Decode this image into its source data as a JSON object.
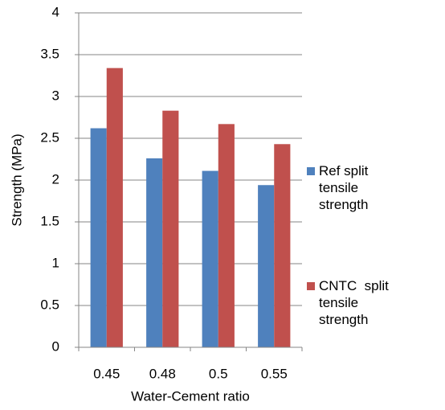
{
  "chart_data": {
    "type": "bar",
    "x_label": "Water-Cement ratio",
    "y_label": "Strength (MPa)",
    "categories": [
      "0.45",
      "0.48",
      "0.5",
      "0.55"
    ],
    "series": [
      {
        "name": "Ref split tensile strength",
        "color": "#4f81bd",
        "values": [
          2.62,
          2.26,
          2.11,
          1.94
        ]
      },
      {
        "name": "CNTC  split tensile strength",
        "color": "#c0504d",
        "values": [
          3.34,
          2.83,
          2.67,
          2.43
        ]
      }
    ],
    "ylim": [
      0,
      4
    ],
    "yticks": [
      0,
      0.5,
      1,
      1.5,
      2,
      2.5,
      3,
      3.5,
      4
    ],
    "grid": true,
    "legend": "right"
  }
}
